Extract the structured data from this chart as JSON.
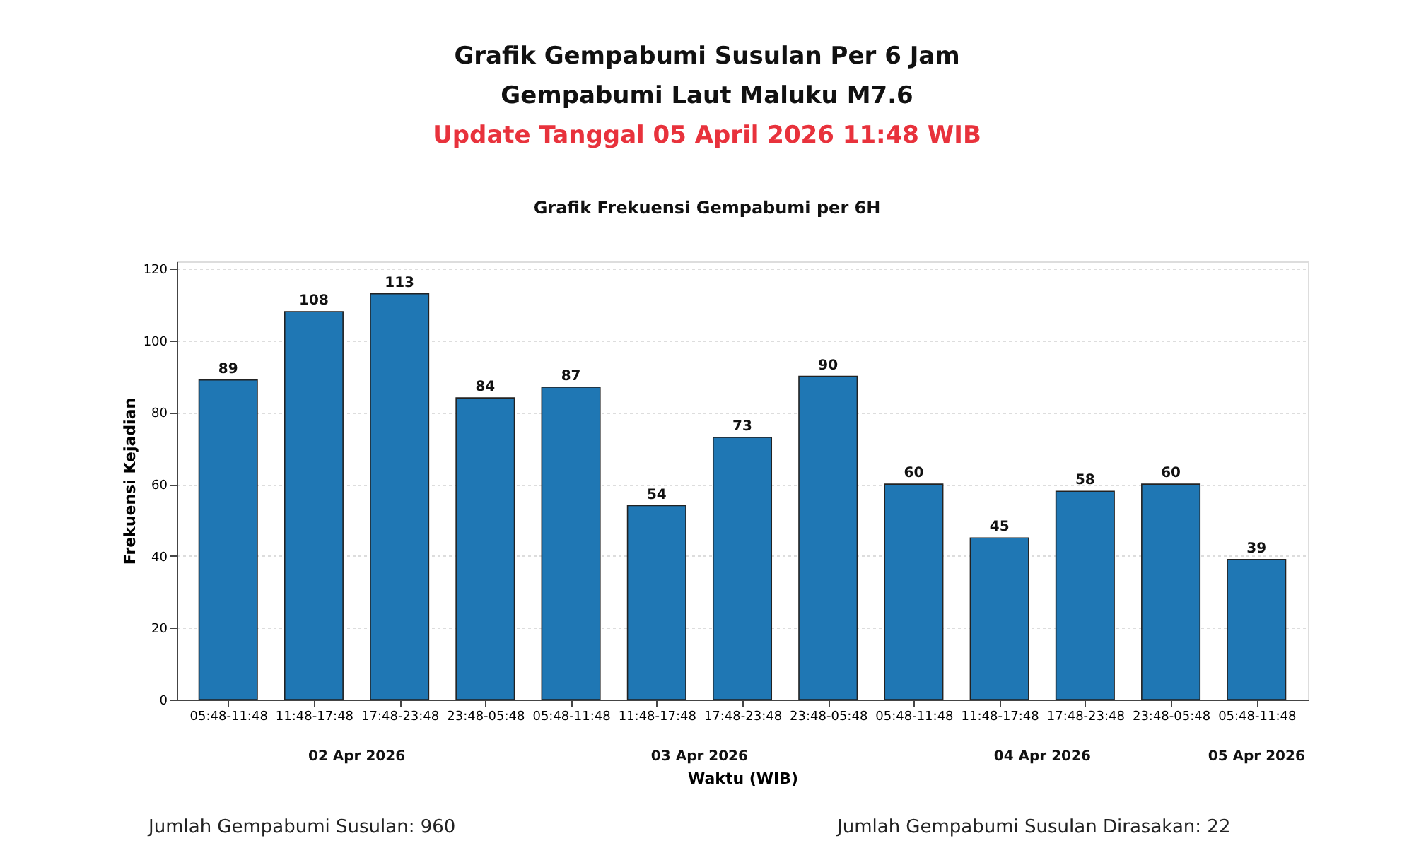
{
  "chart_data": {
    "type": "bar",
    "title": "Grafik Gempabumi Susulan Per 6 Jam",
    "subtitle": "Gempabumi Laut Maluku M7.6",
    "annotations": [
      "Update Tanggal 05 April 2026 11:48 WIB",
      "Grafik Frekuensi Gempabumi per 6H",
      "02 Apr 2026",
      "03 Apr 2026",
      "04 Apr 2026",
      "05 Apr 2026",
      "Jumlah Gempabumi Susulan:  960",
      "Jumlah Gempabumi Susulan Dirasakan: 22"
    ],
    "xlabel": "Waktu (WIB)",
    "ylabel": "Frekuensi Kejadian",
    "categories": [
      "05:48-11:48",
      "11:48-17:48",
      "17:48-23:48",
      "23:48-05:48",
      "05:48-11:48",
      "11:48-17:48",
      "17:48-23:48",
      "23:48-05:48",
      "05:48-11:48",
      "11:48-17:48",
      "17:48-23:48",
      "23:48-05:48",
      "05:48-11:48"
    ],
    "values": [
      89,
      108,
      113,
      84,
      87,
      54,
      73,
      90,
      60,
      45,
      58,
      60,
      39
    ],
    "color": "#1f77b4",
    "ylim": [
      0,
      122
    ],
    "yticks": [
      0,
      20,
      40,
      60,
      80,
      100,
      120
    ],
    "grid": "y",
    "data_labels": true
  }
}
